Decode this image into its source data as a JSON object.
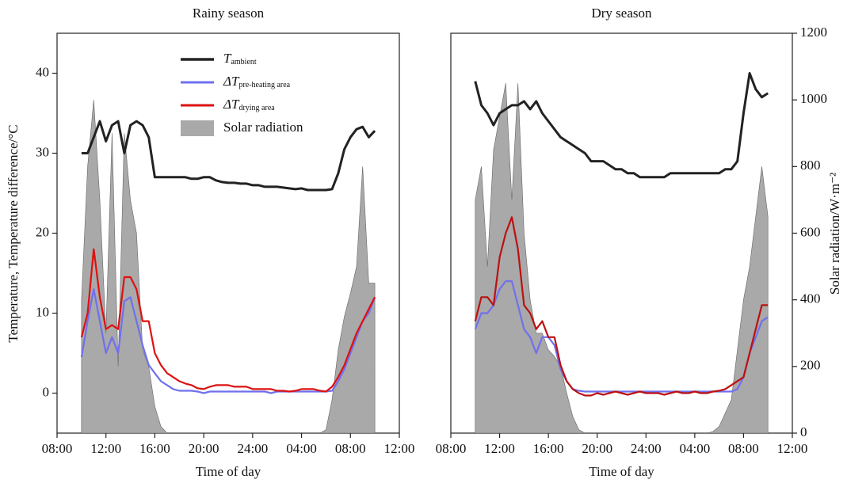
{
  "chart_data": [
    {
      "type": "line",
      "title": "Rainy season",
      "xlabel": "Time of day",
      "ylabel": "Temperature, Temperature difference/°C",
      "legend": "upper center",
      "x": [
        10,
        10.5,
        11,
        11.5,
        12,
        12.5,
        13,
        13.5,
        14,
        14.5,
        15,
        15.5,
        16,
        16.5,
        17,
        17.5,
        18,
        18.5,
        19,
        19.5,
        20,
        20.5,
        21,
        21.5,
        22,
        22.5,
        23,
        23.5,
        24,
        24.5,
        25,
        25.5,
        26,
        26.5,
        27,
        27.5,
        28,
        28.5,
        29,
        29.5,
        30,
        30.5,
        31,
        31.5,
        32,
        32.5,
        33,
        33.5,
        34
      ],
      "xlim": [
        8,
        36
      ],
      "xticks": [
        {
          "value": 8,
          "label": "08:00"
        },
        {
          "value": 12,
          "label": "12:00"
        },
        {
          "value": 16,
          "label": "16:00"
        },
        {
          "value": 20,
          "label": "20:00"
        },
        {
          "value": 24,
          "label": "24:00"
        },
        {
          "value": 28,
          "label": "04:00"
        },
        {
          "value": 32,
          "label": "08:00"
        },
        {
          "value": 36,
          "label": "12:00"
        }
      ],
      "ylim": [
        -5,
        45
      ],
      "yticks": [
        0,
        10,
        20,
        30,
        40
      ],
      "y2lim": [
        0,
        1200
      ],
      "series": [
        {
          "name": "T",
          "subscript": "ambient",
          "color": "#222222",
          "values": [
            30,
            30,
            32,
            34,
            31.5,
            33.5,
            34,
            30,
            33.5,
            34,
            33.5,
            32,
            27,
            27,
            27,
            27,
            27,
            27,
            26.8,
            26.8,
            27,
            27,
            26.6,
            26.4,
            26.3,
            26.3,
            26.2,
            26.2,
            26,
            26,
            25.8,
            25.8,
            25.8,
            25.7,
            25.6,
            25.5,
            25.6,
            25.4,
            25.4,
            25.4,
            25.4,
            25.5,
            27.5,
            30.5,
            32,
            33,
            33.3,
            32,
            32.8
          ]
        },
        {
          "name": "ΔT",
          "subscript": "pre-heating area",
          "color": "#7070ee",
          "values": [
            4.5,
            9,
            13,
            9,
            5,
            7,
            5,
            11.5,
            12,
            9,
            6,
            3.5,
            2.5,
            1.5,
            1,
            0.5,
            0.3,
            0.3,
            0.3,
            0.2,
            0,
            0.2,
            0.2,
            0.2,
            0.2,
            0.2,
            0.2,
            0.2,
            0.2,
            0.2,
            0.2,
            0,
            0.2,
            0.2,
            0.2,
            0.2,
            0.2,
            0.2,
            0.2,
            0.2,
            0.2,
            0.3,
            1.5,
            3,
            5,
            7,
            9,
            10,
            12
          ]
        },
        {
          "name": "ΔT",
          "subscript": "drying area",
          "color": "#dd1111",
          "values": [
            7,
            10,
            18,
            12,
            8,
            8.5,
            8,
            14.5,
            14.5,
            13,
            9,
            9,
            5,
            3.5,
            2.5,
            2,
            1.5,
            1.2,
            1,
            0.6,
            0.5,
            0.8,
            1,
            1,
            1,
            0.8,
            0.8,
            0.8,
            0.5,
            0.5,
            0.5,
            0.5,
            0.3,
            0.3,
            0.2,
            0.3,
            0.5,
            0.5,
            0.5,
            0.3,
            0.2,
            0.8,
            2,
            3.5,
            5.5,
            7.5,
            9,
            10.5,
            12
          ]
        },
        {
          "name": "Solar radiation",
          "color": "#a9a9a9",
          "area": true,
          "axis": "y2",
          "values": [
            400,
            800,
            1000,
            700,
            300,
            900,
            200,
            900,
            700,
            600,
            250,
            200,
            80,
            20,
            0,
            0,
            0,
            0,
            0,
            0,
            0,
            0,
            0,
            0,
            0,
            0,
            0,
            0,
            0,
            0,
            0,
            0,
            0,
            0,
            0,
            0,
            0,
            0,
            0,
            0,
            10,
            100,
            250,
            350,
            420,
            500,
            800,
            450,
            450
          ]
        }
      ]
    },
    {
      "type": "line",
      "title": "Dry season",
      "xlabel": "Time of day",
      "y2label": "Solar radiation/W·m⁻²",
      "x": [
        10,
        10.5,
        11,
        11.5,
        12,
        12.5,
        13,
        13.5,
        14,
        14.5,
        15,
        15.5,
        16,
        16.5,
        17,
        17.5,
        18,
        18.5,
        19,
        19.5,
        20,
        20.5,
        21,
        21.5,
        22,
        22.5,
        23,
        23.5,
        24,
        24.5,
        25,
        25.5,
        26,
        26.5,
        27,
        27.5,
        28,
        28.5,
        29,
        29.5,
        30,
        30.5,
        31,
        31.5,
        32,
        32.5,
        33,
        33.5,
        34
      ],
      "xlim": [
        8,
        36
      ],
      "xticks": [
        {
          "value": 8,
          "label": "08:00"
        },
        {
          "value": 12,
          "label": "12:00"
        },
        {
          "value": 16,
          "label": "16:00"
        },
        {
          "value": 20,
          "label": "20:00"
        },
        {
          "value": 24,
          "label": "24:00"
        },
        {
          "value": 28,
          "label": "04:00"
        },
        {
          "value": 32,
          "label": "08:00"
        },
        {
          "value": 36,
          "label": "12:00"
        }
      ],
      "ylim": [
        -5,
        45
      ],
      "y2lim": [
        0,
        1200
      ],
      "y2ticks": [
        0,
        200,
        400,
        600,
        800,
        1000,
        1200
      ],
      "series": [
        {
          "color": "#222222",
          "values": [
            39,
            36,
            35,
            33.5,
            35,
            35.5,
            36,
            36,
            36.5,
            35.5,
            36.5,
            35,
            34,
            33,
            32,
            31.5,
            31,
            30.5,
            30,
            29,
            29,
            29,
            28.5,
            28,
            28,
            27.5,
            27.5,
            27,
            27,
            27,
            27,
            27,
            27.5,
            27.5,
            27.5,
            27.5,
            27.5,
            27.5,
            27.5,
            27.5,
            27.5,
            28,
            28,
            29,
            35,
            40,
            38,
            37,
            37.5
          ]
        },
        {
          "color": "#7070ee",
          "values": [
            8,
            10,
            10,
            11,
            13,
            14,
            14,
            11,
            8,
            7,
            5,
            7,
            7,
            6,
            3,
            1.5,
            0.5,
            0.3,
            0.2,
            0.2,
            0.2,
            0.2,
            0.2,
            0.2,
            0.2,
            0.2,
            0.2,
            0.2,
            0.2,
            0.2,
            0.2,
            0.2,
            0.2,
            0.2,
            0.2,
            0.2,
            0.2,
            0.2,
            0.2,
            0.2,
            0.2,
            0.2,
            0.2,
            0.5,
            2,
            5,
            7,
            9,
            9.5
          ]
        },
        {
          "color": "#bb1111",
          "values": [
            9,
            12,
            12,
            11,
            17,
            20,
            22,
            18,
            11,
            10,
            8,
            9,
            7,
            7,
            3.5,
            1.5,
            0.5,
            0,
            -0.3,
            -0.3,
            0,
            -0.2,
            0,
            0.2,
            0,
            -0.2,
            0,
            0.2,
            0,
            0,
            0,
            -0.2,
            0,
            0.2,
            0,
            0,
            0.2,
            0,
            0,
            0.2,
            0.3,
            0.5,
            1,
            1.5,
            2,
            5,
            8,
            11,
            11
          ]
        },
        {
          "color": "#a9a9a9",
          "area": true,
          "axis": "y2",
          "values": [
            700,
            800,
            500,
            850,
            950,
            1050,
            700,
            1050,
            600,
            400,
            300,
            300,
            250,
            230,
            200,
            120,
            50,
            10,
            0,
            0,
            0,
            0,
            0,
            0,
            0,
            0,
            0,
            0,
            0,
            0,
            0,
            0,
            0,
            0,
            0,
            0,
            0,
            0,
            0,
            5,
            20,
            60,
            100,
            250,
            400,
            500,
            650,
            800,
            650
          ]
        }
      ]
    }
  ]
}
